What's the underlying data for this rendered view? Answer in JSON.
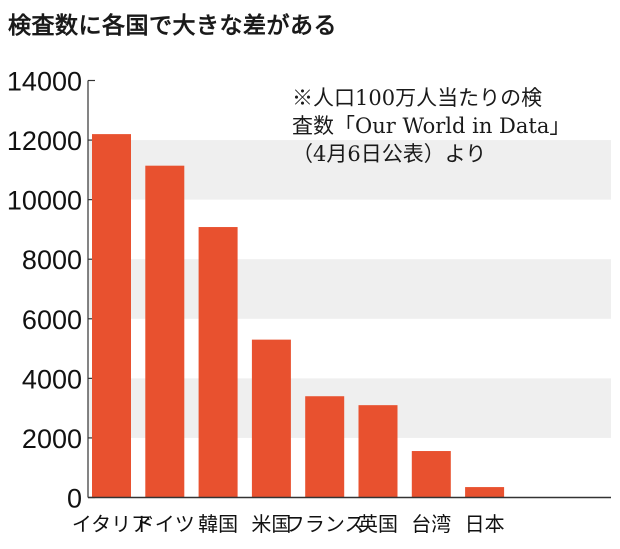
{
  "chart_data": {
    "type": "bar",
    "title": "検査数に各国で大きな差がある",
    "annotation": [
      "※人口100万人当たりの検",
      "査数「Our World in Data」",
      "（4月6日公表）より"
    ],
    "categories": [
      "イタリア",
      "ドイツ",
      "韓国",
      "米国",
      "フランス",
      "英国",
      "台湾",
      "日本"
    ],
    "values": [
      12200,
      11140,
      9080,
      5300,
      3400,
      3100,
      1560,
      350
    ],
    "xlabel": "",
    "ylabel": "",
    "ylim": [
      0,
      14000
    ],
    "yticks": [
      0,
      2000,
      4000,
      6000,
      8000,
      10000,
      12000,
      14000
    ],
    "shaded_bands": [
      [
        2000,
        4000
      ],
      [
        6000,
        8000
      ],
      [
        10000,
        12000
      ]
    ],
    "bar_color": "#e8512f",
    "band_color": "#efefef"
  }
}
